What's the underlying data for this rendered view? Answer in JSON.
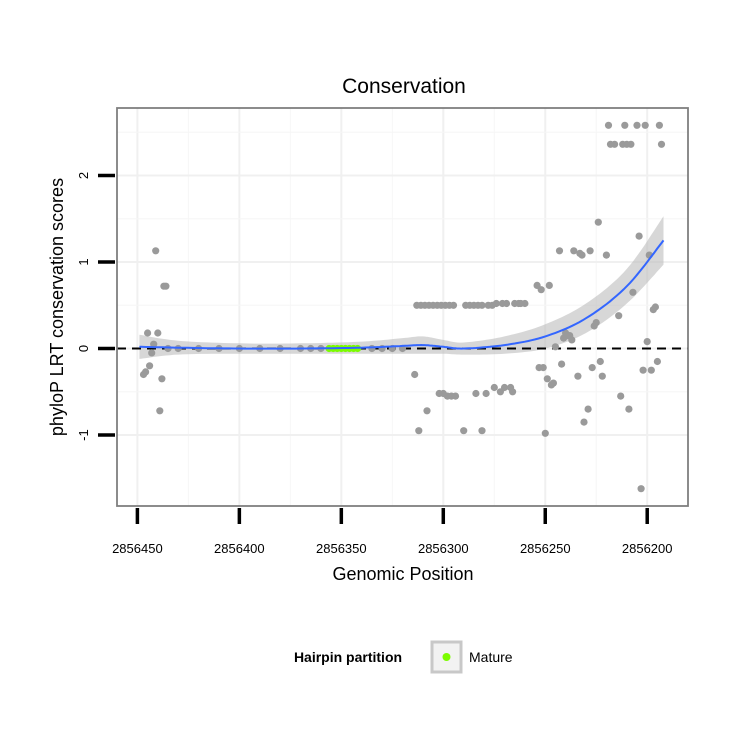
{
  "chart_data": {
    "type": "scatter",
    "title": "Conservation",
    "xlabel": "Genomic Position",
    "ylabel": "phyloP LRT conservation scores",
    "x_reversed": true,
    "xlim": [
      2856460,
      2856180
    ],
    "ylim": [
      -1.82,
      2.78
    ],
    "x_ticks": [
      2856450,
      2856400,
      2856350,
      2856300,
      2856250,
      2856200
    ],
    "y_ticks": [
      -1,
      0,
      1,
      2
    ],
    "grid": true,
    "reference_line": {
      "y": 0,
      "style": "dashed",
      "color": "#000000"
    },
    "point_color": "#9a9a9a",
    "mature_color": "#7cfc00",
    "smooth_color": "#3366ff",
    "band_color": "#bdbdbd",
    "legend": {
      "title": "Hairpin partition",
      "placement": "bottom",
      "entries": [
        "Mature"
      ]
    },
    "series": [
      {
        "name": "Mature",
        "partition": "mature",
        "points": [
          [
            2856356,
            0
          ],
          [
            2856354,
            0
          ],
          [
            2856352,
            0
          ],
          [
            2856350,
            0
          ],
          [
            2856348,
            0
          ],
          [
            2856346,
            0
          ],
          [
            2856344,
            0
          ],
          [
            2856342,
            0
          ]
        ]
      },
      {
        "name": "",
        "partition": "other",
        "points": [
          [
            2856447,
            -0.3
          ],
          [
            2856446,
            -0.27
          ],
          [
            2856445,
            0.18
          ],
          [
            2856444,
            -0.2
          ],
          [
            2856443,
            -0.05
          ],
          [
            2856442,
            0.05
          ],
          [
            2856441,
            1.13
          ],
          [
            2856440,
            0.18
          ],
          [
            2856439,
            -0.72
          ],
          [
            2856438,
            -0.35
          ],
          [
            2856437,
            0.72
          ],
          [
            2856436,
            0.72
          ],
          [
            2856435,
            0
          ],
          [
            2856430,
            0
          ],
          [
            2856420,
            0
          ],
          [
            2856410,
            0
          ],
          [
            2856400,
            0
          ],
          [
            2856390,
            0
          ],
          [
            2856380,
            0
          ],
          [
            2856370,
            0
          ],
          [
            2856365,
            0
          ],
          [
            2856360,
            0
          ],
          [
            2856335,
            0
          ],
          [
            2856330,
            0
          ],
          [
            2856325,
            0
          ],
          [
            2856320,
            0
          ],
          [
            2856314,
            -0.3
          ],
          [
            2856312,
            -0.95
          ],
          [
            2856313,
            0.5
          ],
          [
            2856311,
            0.5
          ],
          [
            2856309,
            0.5
          ],
          [
            2856307,
            0.5
          ],
          [
            2856308,
            -0.72
          ],
          [
            2856305,
            0.5
          ],
          [
            2856303,
            0.5
          ],
          [
            2856301,
            0.5
          ],
          [
            2856299,
            0.5
          ],
          [
            2856297,
            0.5
          ],
          [
            2856302,
            -0.52
          ],
          [
            2856300,
            -0.52
          ],
          [
            2856298,
            -0.55
          ],
          [
            2856296,
            -0.55
          ],
          [
            2856294,
            -0.55
          ],
          [
            2856295,
            0.5
          ],
          [
            2856290,
            -0.95
          ],
          [
            2856289,
            0.5
          ],
          [
            2856287,
            0.5
          ],
          [
            2856285,
            0.5
          ],
          [
            2856281,
            -0.95
          ],
          [
            2856284,
            -0.52
          ],
          [
            2856283,
            0.5
          ],
          [
            2856281,
            0.5
          ],
          [
            2856279,
            -0.52
          ],
          [
            2856278,
            0.5
          ],
          [
            2856276,
            0.5
          ],
          [
            2856275,
            -0.45
          ],
          [
            2856274,
            0.52
          ],
          [
            2856272,
            -0.5
          ],
          [
            2856271,
            0.52
          ],
          [
            2856270,
            -0.45
          ],
          [
            2856269,
            0.52
          ],
          [
            2856267,
            -0.45
          ],
          [
            2856266,
            -0.5
          ],
          [
            2856265,
            0.52
          ],
          [
            2856263,
            0.52
          ],
          [
            2856262,
            0.52
          ],
          [
            2856260,
            0.52
          ],
          [
            2856254,
            0.73
          ],
          [
            2856252,
            0.68
          ],
          [
            2856250,
            -0.98
          ],
          [
            2856248,
            0.73
          ],
          [
            2856253,
            -0.22
          ],
          [
            2856251,
            -0.22
          ],
          [
            2856249,
            -0.35
          ],
          [
            2856247,
            -0.42
          ],
          [
            2856246,
            -0.4
          ],
          [
            2856245,
            0.02
          ],
          [
            2856243,
            1.13
          ],
          [
            2856242,
            -0.18
          ],
          [
            2856241,
            0.12
          ],
          [
            2856240,
            0.18
          ],
          [
            2856239,
            0.15
          ],
          [
            2856238,
            0.15
          ],
          [
            2856237,
            0.1
          ],
          [
            2856236,
            1.13
          ],
          [
            2856234,
            -0.32
          ],
          [
            2856233,
            1.1
          ],
          [
            2856232,
            1.08
          ],
          [
            2856231,
            -0.85
          ],
          [
            2856229,
            -0.7
          ],
          [
            2856228,
            1.13
          ],
          [
            2856227,
            -0.22
          ],
          [
            2856226,
            0.26
          ],
          [
            2856225,
            0.3
          ],
          [
            2856224,
            1.46
          ],
          [
            2856223,
            -0.15
          ],
          [
            2856222,
            -0.32
          ],
          [
            2856220,
            1.08
          ],
          [
            2856219,
            2.58
          ],
          [
            2856218,
            2.36
          ],
          [
            2856216,
            2.36
          ],
          [
            2856214,
            0.38
          ],
          [
            2856213,
            -0.55
          ],
          [
            2856212,
            2.36
          ],
          [
            2856211,
            2.58
          ],
          [
            2856210,
            2.36
          ],
          [
            2856209,
            -0.7
          ],
          [
            2856208,
            2.36
          ],
          [
            2856207,
            0.65
          ],
          [
            2856205,
            2.58
          ],
          [
            2856204,
            1.3
          ],
          [
            2856203,
            -1.62
          ],
          [
            2856202,
            -0.25
          ],
          [
            2856201,
            2.58
          ],
          [
            2856200,
            0.08
          ],
          [
            2856199,
            1.08
          ],
          [
            2856198,
            -0.25
          ],
          [
            2856197,
            0.45
          ],
          [
            2856196,
            0.48
          ],
          [
            2856195,
            -0.15
          ],
          [
            2856194,
            2.58
          ],
          [
            2856193,
            2.36
          ]
        ]
      }
    ],
    "smooth": [
      [
        2856449,
        0.02,
        0.14
      ],
      [
        2856430,
        0.01,
        0.08
      ],
      [
        2856400,
        0.0,
        0.06
      ],
      [
        2856370,
        0.0,
        0.06
      ],
      [
        2856340,
        0.01,
        0.07
      ],
      [
        2856320,
        0.03,
        0.09
      ],
      [
        2856310,
        0.04,
        0.1
      ],
      [
        2856300,
        0.02,
        0.08
      ],
      [
        2856290,
        0.0,
        0.07
      ],
      [
        2856270,
        0.04,
        0.1
      ],
      [
        2856250,
        0.14,
        0.14
      ],
      [
        2856230,
        0.35,
        0.17
      ],
      [
        2856210,
        0.72,
        0.2
      ],
      [
        2856192,
        1.25,
        0.28
      ]
    ]
  }
}
